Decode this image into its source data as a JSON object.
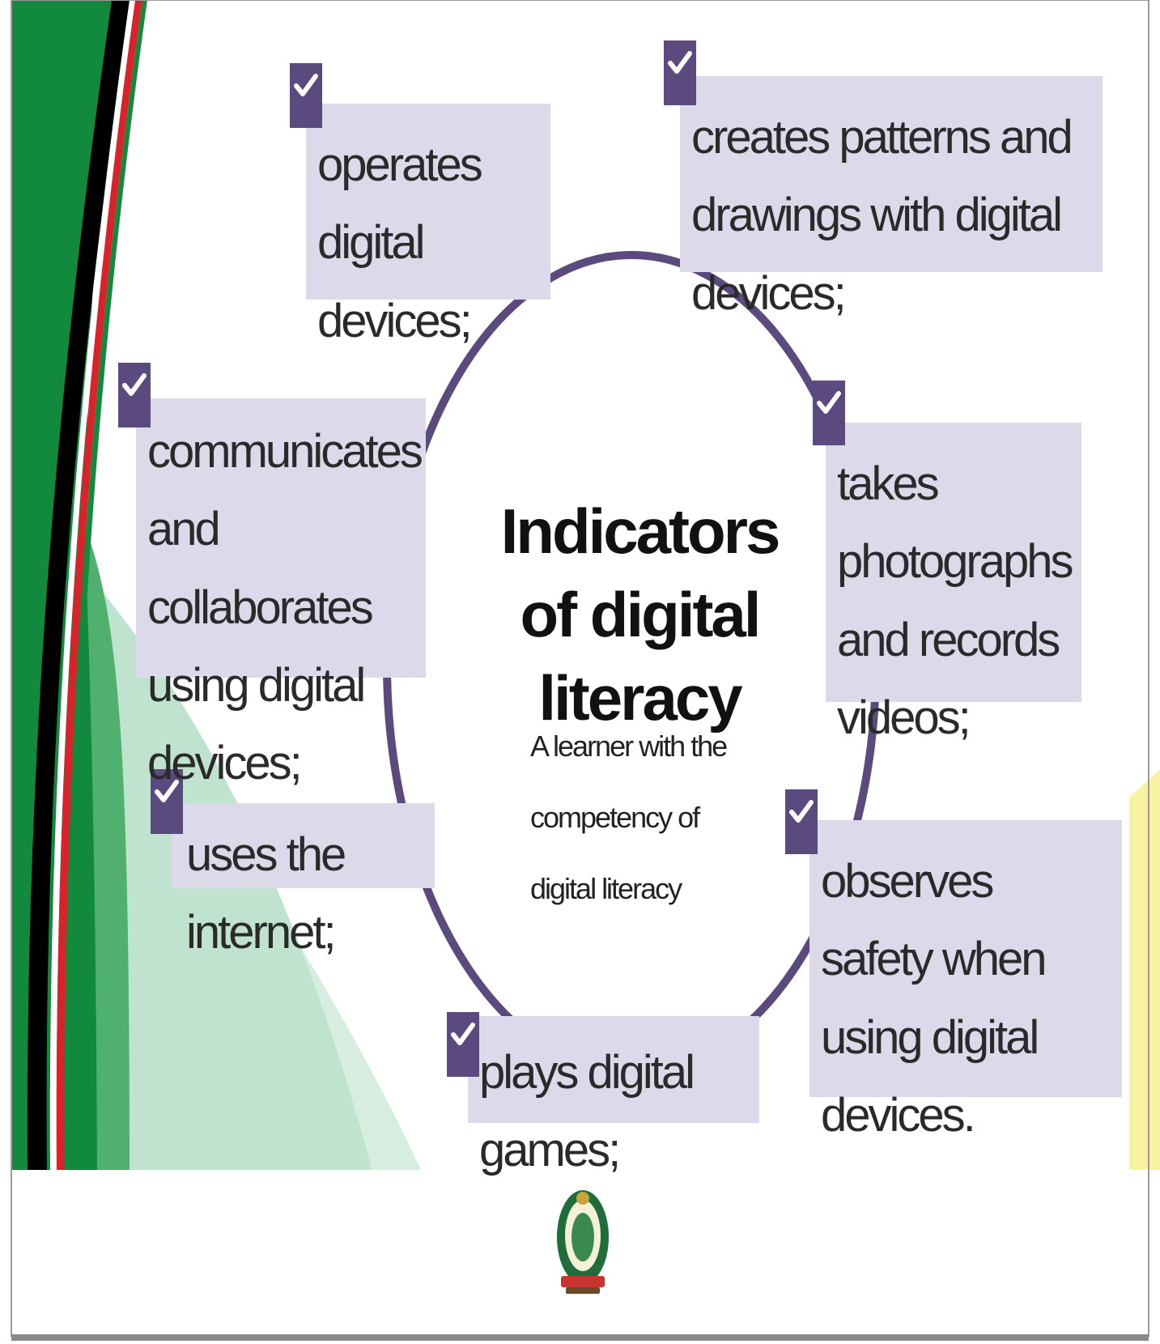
{
  "diagram": {
    "title": "Indicators of digital literacy",
    "subtitle": "A learner with the competency of digital literacy",
    "indicators": [
      {
        "label": "operates digital devices;"
      },
      {
        "label": "creates patterns and drawings with digital devices;"
      },
      {
        "label": "takes photographs and records videos;"
      },
      {
        "label": "observes safety when using digital devices."
      },
      {
        "label": "plays digital games;"
      },
      {
        "label": "uses the internet;"
      },
      {
        "label": "communicates and collaborates using digital devices;"
      }
    ]
  },
  "colors": {
    "box_fill": "#dcd9ea",
    "checkmark_fill": "#5a4a7e",
    "ring": "#5a4a7e",
    "green_dark": "#128a3e",
    "green_light": "#bfe3cf",
    "stripe_red": "#d8232a",
    "stripe_black": "#000000",
    "accent_yellow": "#f7f3a0"
  },
  "icons": {
    "checkmark": "check-icon",
    "logo": "coat-of-arms-seal"
  }
}
